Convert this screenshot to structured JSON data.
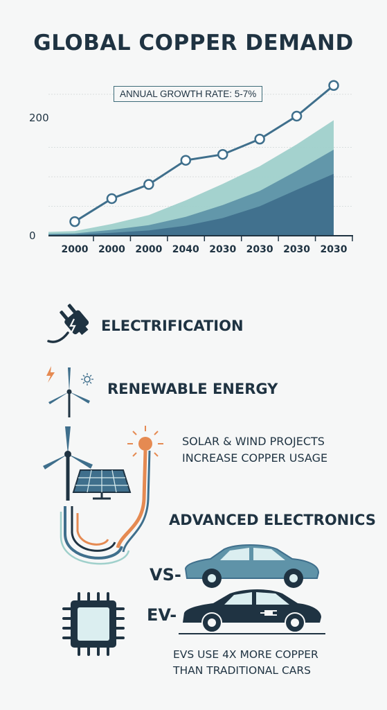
{
  "title": "GLOBAL COPPER DEMAND",
  "colors": {
    "navy": "#1f3342",
    "teal_light": "#9fd0cb",
    "teal_mid": "#5f93a8",
    "teal_dark": "#3f6f8c",
    "copper": "#e58a52"
  },
  "chart_data": {
    "type": "line",
    "annotation": "ANNUAL GROWTH RATE: 5-7%",
    "categories": [
      "2000",
      "2000",
      "2000",
      "2040",
      "2030",
      "2030",
      "2030",
      "2030"
    ],
    "y_ticks": [
      "200",
      "0"
    ],
    "ylim": [
      0,
      200
    ],
    "grid": true,
    "series": [
      {
        "values": [
          24,
          63,
          87,
          128,
          138,
          164,
          203,
          255
        ]
      }
    ],
    "areas": [
      {
        "values": [
          8,
          20,
          35,
          60,
          88,
          118,
          155,
          196
        ]
      },
      {
        "values": [
          4,
          10,
          18,
          32,
          52,
          76,
          110,
          146
        ]
      },
      {
        "values": [
          2,
          5,
          9,
          17,
          30,
          50,
          78,
          105
        ]
      }
    ]
  },
  "sections": {
    "electrification": {
      "label": "ELECTRIFICATION",
      "icon": "plug-icon"
    },
    "renewable": {
      "label": "RENEWABLE ENERGY",
      "icon": "wind-turbine-icon"
    },
    "solar_wind": {
      "line1": "SOLAR & WIND PROJECTS",
      "line2": "INCREASE COPPER USAGE",
      "icon": "solar-panel-icon"
    },
    "advanced": {
      "label": "ADVANCED ELECTRONICS",
      "icon": "microchip-icon"
    },
    "vs": {
      "label": "VS-",
      "icon": "car-icon"
    },
    "ev": {
      "label": "EV-",
      "icon": "electric-car-icon"
    },
    "evs": {
      "line1": "EVS USE 4X MORE COPPER",
      "line2": "THAN TRADITIONAL CARS"
    }
  }
}
